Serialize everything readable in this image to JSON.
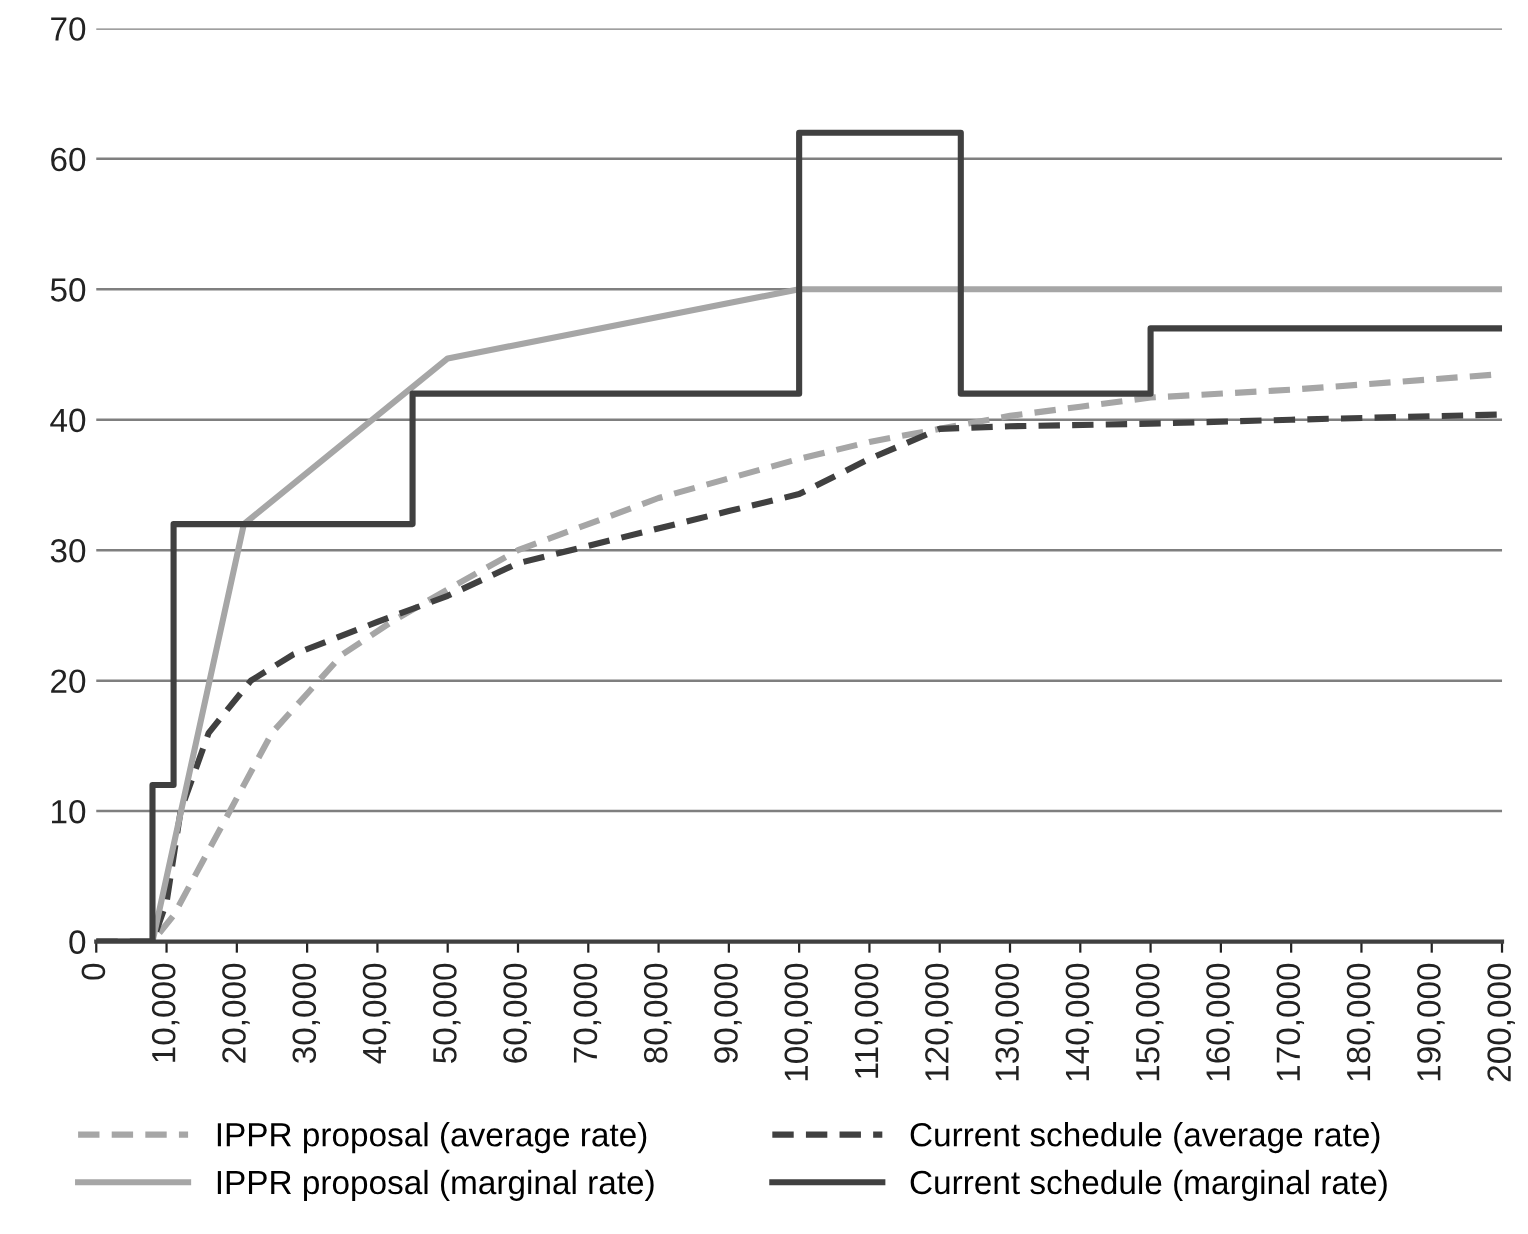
{
  "chart_data": {
    "type": "line",
    "series": [
      {
        "name": "IPPR proposal (average rate)",
        "color": "#a6a6a6",
        "line_style": "dashed",
        "x": [
          0,
          8000,
          11000,
          15000,
          20000,
          25000,
          30000,
          35000,
          42000,
          50000,
          60000,
          70000,
          80000,
          90000,
          100000,
          110000,
          120000,
          130000,
          140000,
          150000,
          170000,
          200000
        ],
        "values": [
          0,
          0,
          2,
          6,
          11,
          16,
          19,
          22,
          24.5,
          27,
          30,
          32,
          34,
          35.5,
          37,
          38.3,
          39.3,
          40.3,
          41,
          41.7,
          42.3,
          43.5
        ]
      },
      {
        "name": "Current schedule (average rate)",
        "color": "#404040",
        "line_style": "dashed",
        "x": [
          0,
          8000,
          10000,
          12000,
          16000,
          22000,
          28000,
          40000,
          50000,
          60000,
          75000,
          90000,
          100000,
          110000,
          120000,
          130000,
          150000,
          170000,
          200000
        ],
        "values": [
          0,
          0,
          3,
          10,
          16,
          20,
          22,
          24.5,
          26.5,
          29,
          31,
          33,
          34.3,
          37,
          39.3,
          39.5,
          39.7,
          40,
          40.4
        ]
      },
      {
        "name": "IPPR proposal (marginal rate)",
        "color": "#a6a6a6",
        "line_style": "solid",
        "x": [
          0,
          8000,
          21000,
          50000,
          100000,
          200000
        ],
        "values": [
          0,
          0,
          32,
          44.7,
          50,
          50
        ]
      },
      {
        "name": "Current schedule (marginal rate)",
        "color": "#404040",
        "line_style": "solid",
        "x": [
          0,
          8000,
          8000,
          11000,
          11000,
          45000,
          45000,
          100000,
          100000,
          123000,
          123000,
          150000,
          150000,
          200000
        ],
        "values": [
          0,
          0,
          12,
          12,
          32,
          32,
          42,
          42,
          62,
          62,
          42,
          42,
          47,
          47
        ]
      }
    ],
    "xlim": [
      0,
      200000
    ],
    "xticks": [
      0,
      {
        "value": 10000,
        "label": "10,000"
      },
      {
        "value": 20000,
        "label": "20,000"
      },
      {
        "value": 30000,
        "label": "30,000"
      },
      {
        "value": 40000,
        "label": "40,000"
      },
      {
        "value": 50000,
        "label": "50,000"
      },
      {
        "value": 60000,
        "label": "60,000"
      },
      {
        "value": 70000,
        "label": "70,000"
      },
      {
        "value": 80000,
        "label": "80,000"
      },
      {
        "value": 90000,
        "label": "90,000"
      },
      {
        "value": 100000,
        "label": "100,000"
      },
      {
        "value": 110000,
        "label": "110,000"
      },
      {
        "value": 120000,
        "label": "120,000"
      },
      {
        "value": 130000,
        "label": "130,000"
      },
      {
        "value": 140000,
        "label": "140,000"
      },
      {
        "value": 150000,
        "label": "150,000"
      },
      {
        "value": 160000,
        "label": "160,000"
      },
      {
        "value": 170000,
        "label": "170,000"
      },
      {
        "value": 180000,
        "label": "180,000"
      },
      {
        "value": 190000,
        "label": "190,000"
      },
      {
        "value": 200000,
        "label": "200,000"
      }
    ],
    "ylim": [
      0,
      70
    ],
    "yticks": [
      0,
      10,
      20,
      30,
      40,
      50,
      60,
      70
    ],
    "grid": "y",
    "legend": "bottom",
    "marker": "none"
  }
}
